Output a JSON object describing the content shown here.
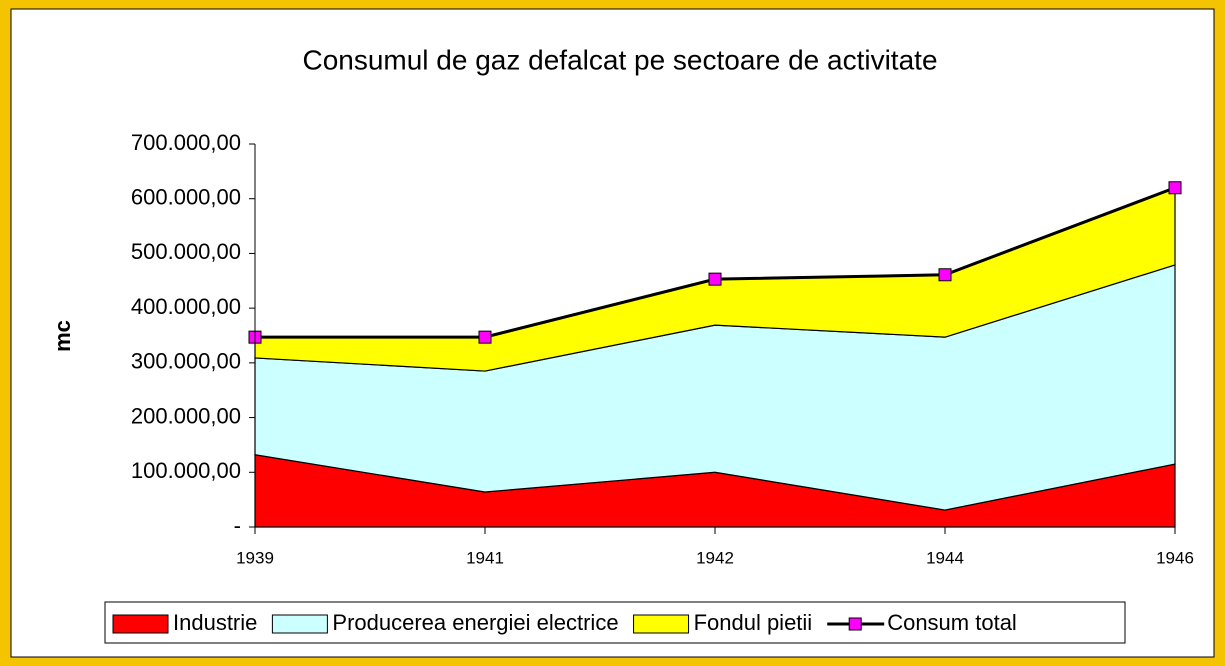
{
  "chart_data": {
    "type": "area",
    "stacked": true,
    "title": "Consumul de gaz defalcat pe sectoare de activitate",
    "y_label": "mc",
    "categories": [
      "1939",
      "1941",
      "1942",
      "1944",
      "1946"
    ],
    "series": [
      {
        "name": "Industrie",
        "color": "#ff0000",
        "values": [
          132000,
          64000,
          100000,
          31000,
          115000
        ]
      },
      {
        "name": "Producerea energiei electrice",
        "color": "#ccffff",
        "values": [
          177000,
          221000,
          269000,
          316000,
          364000
        ]
      },
      {
        "name": "Fondul pietii",
        "color": "#ffff00",
        "values": [
          38000,
          62000,
          84000,
          114000,
          141000
        ]
      },
      {
        "name": "Consum total",
        "type": "line",
        "color": "#000000",
        "marker_color": "#ff00ff",
        "values": [
          347000,
          347000,
          453000,
          461000,
          620000
        ]
      }
    ],
    "ylim": [
      0,
      700000
    ],
    "yticks": [
      {
        "value": 0,
        "label": "-"
      },
      {
        "value": 100000,
        "label": "100.000,00"
      },
      {
        "value": 200000,
        "label": "200.000,00"
      },
      {
        "value": 300000,
        "label": "300.000,00"
      },
      {
        "value": 400000,
        "label": "400.000,00"
      },
      {
        "value": 500000,
        "label": "500.000,00"
      },
      {
        "value": 600000,
        "label": "600.000,00"
      },
      {
        "value": 700000,
        "label": "700.000,00"
      }
    ],
    "grid": false,
    "legend": "bottom"
  }
}
